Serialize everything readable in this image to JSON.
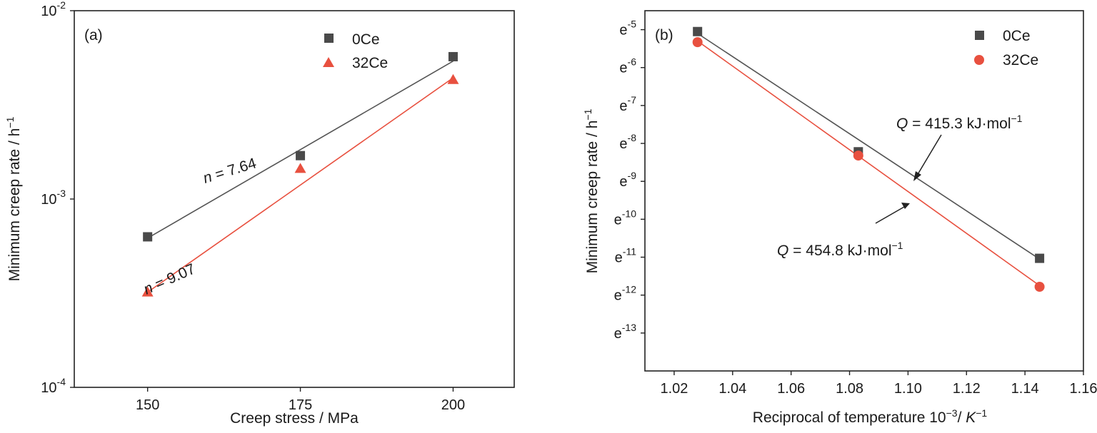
{
  "chart_data": [
    {
      "type": "scatter",
      "panel_label": "(a)",
      "xlabel": "Creep stress / MPa",
      "ylabel": "Minimum creep rate / h",
      "ylabel_sup": "−1",
      "y_scale": "log",
      "xlim": [
        138,
        210
      ],
      "ylim": [
        0.0001,
        0.01
      ],
      "x_ticks": [
        "150",
        "175",
        "200"
      ],
      "x_tick_values": [
        150,
        175,
        200
      ],
      "y_ticks": [
        {
          "value": 0.01,
          "base": "10",
          "exp": "-2"
        },
        {
          "value": 0.001,
          "base": "10",
          "exp": "-3"
        },
        {
          "value": 0.0001,
          "base": "10",
          "exp": "-4"
        }
      ],
      "legend_position": "top-right",
      "series": [
        {
          "name": "0Ce",
          "marker": "square",
          "color": "#4a4a4a",
          "x": [
            150,
            175,
            200
          ],
          "y": [
            0.00063,
            0.0017,
            0.0057
          ],
          "fit": [
            [
              150,
              0.00062
            ],
            [
              200,
              0.0054
            ]
          ]
        },
        {
          "name": "32Ce",
          "marker": "triangle",
          "color": "#e8503f",
          "x": [
            150,
            175,
            200
          ],
          "y": [
            0.00032,
            0.00145,
            0.0043
          ],
          "fit": [
            [
              150,
              0.00032
            ],
            [
              200,
              0.0044
            ]
          ]
        }
      ],
      "annotations": [
        {
          "var": "n",
          "text": " = 7.64"
        },
        {
          "var": "n",
          "text": " = 9.07"
        }
      ]
    },
    {
      "type": "scatter",
      "panel_label": "(b)",
      "xlabel": "Reciprocal of temperature 10",
      "xlabel_sup": "−3",
      "xlabel_tail": "/ ",
      "xlabel_unit": "K",
      "xlabel_unit_sup": "−1",
      "ylabel": "Minimum creep rate / h",
      "ylabel_sup": "−1",
      "y_scale": "ln",
      "xlim": [
        1.01,
        1.16
      ],
      "ylim": [
        -14,
        -4.5
      ],
      "x_ticks": [
        "1.02",
        "1.04",
        "1.06",
        "1.08",
        "1.10",
        "1.12",
        "1.14",
        "1.16"
      ],
      "x_tick_values": [
        1.02,
        1.04,
        1.06,
        1.08,
        1.1,
        1.12,
        1.14,
        1.16
      ],
      "y_ticks": [
        {
          "value": -5,
          "base": "e",
          "exp": "-5"
        },
        {
          "value": -6,
          "base": "e",
          "exp": "-6"
        },
        {
          "value": -7,
          "base": "e",
          "exp": "-7"
        },
        {
          "value": -8,
          "base": "e",
          "exp": "-8"
        },
        {
          "value": -9,
          "base": "e",
          "exp": "-9"
        },
        {
          "value": -10,
          "base": "e",
          "exp": "-10"
        },
        {
          "value": -11,
          "base": "e",
          "exp": "-11"
        },
        {
          "value": -12,
          "base": "e",
          "exp": "-12"
        },
        {
          "value": -13,
          "base": "e",
          "exp": "-13"
        }
      ],
      "legend_position": "top-right",
      "series": [
        {
          "name": "0Ce",
          "marker": "square",
          "color": "#4a4a4a",
          "x": [
            1.028,
            1.083,
            1.145
          ],
          "y": [
            -5.05,
            -8.22,
            -11.03
          ],
          "fit": [
            [
              1.028,
              -5.1
            ],
            [
              1.145,
              -11.05
            ]
          ]
        },
        {
          "name": "32Ce",
          "marker": "circle",
          "color": "#e8503f",
          "x": [
            1.028,
            1.083,
            1.145
          ],
          "y": [
            -5.33,
            -8.32,
            -11.78
          ],
          "fit": [
            [
              1.028,
              -5.3
            ],
            [
              1.145,
              -11.75
            ]
          ]
        }
      ],
      "annotations": [
        {
          "var": "Q",
          "text": " = 415.3 kJ·mol",
          "sup": "−1"
        },
        {
          "var": "Q",
          "text": " = 454.8 kJ·mol",
          "sup": "−1"
        }
      ]
    }
  ]
}
